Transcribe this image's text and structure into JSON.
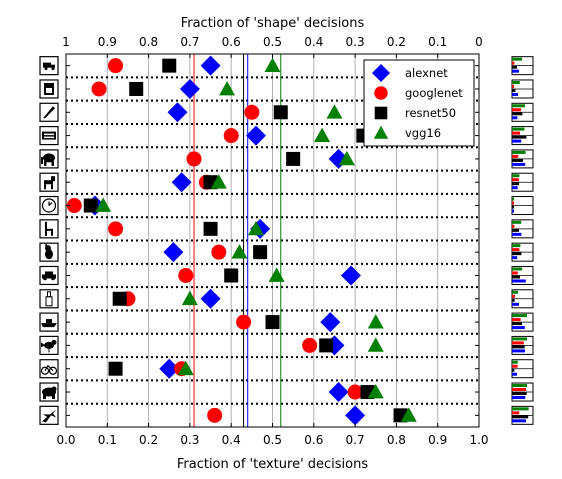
{
  "chart_data": {
    "type": "scatter",
    "xlabel": "Fraction of 'texture' decisions",
    "top_xlabel": "Fraction of 'shape' decisions",
    "xlim": [
      0,
      1
    ],
    "x_ticks": [
      "0.0",
      "0.1",
      "0.2",
      "0.3",
      "0.4",
      "0.5",
      "0.6",
      "0.7",
      "0.8",
      "0.9",
      "1.0"
    ],
    "top_ticks": [
      "1",
      "0.9",
      "0.8",
      "0.7",
      "0.6",
      "0.5",
      "0.4",
      "0.3",
      "0.2",
      "0.1",
      "0"
    ],
    "categories": [
      "truck",
      "oven",
      "knife",
      "keyboard",
      "elephant",
      "dog",
      "clock",
      "chair",
      "cat",
      "car",
      "bottle",
      "boat",
      "bird",
      "bicycle",
      "bear",
      "airplane"
    ],
    "series": [
      {
        "name": "alexnet",
        "marker": "diamond",
        "color": "#0000ff",
        "mean": 0.44,
        "values": [
          0.35,
          0.3,
          0.27,
          0.46,
          0.66,
          0.28,
          0.07,
          0.47,
          0.26,
          0.69,
          0.35,
          0.64,
          0.65,
          0.25,
          0.66,
          0.7
        ]
      },
      {
        "name": "googlenet",
        "marker": "circle",
        "color": "#ff0000",
        "mean": 0.31,
        "values": [
          0.12,
          0.08,
          0.45,
          0.4,
          0.31,
          0.34,
          0.02,
          0.12,
          0.37,
          0.29,
          0.15,
          0.43,
          0.59,
          0.28,
          0.7,
          0.36
        ]
      },
      {
        "name": "resnet50",
        "marker": "square",
        "color": "#000000",
        "mean": 0.43,
        "values": [
          0.25,
          0.17,
          0.52,
          0.72,
          0.55,
          0.35,
          0.06,
          0.35,
          0.47,
          0.4,
          0.13,
          0.5,
          0.63,
          0.12,
          0.73,
          0.81
        ]
      },
      {
        "name": "vgg16",
        "marker": "triangle",
        "color": "#008000",
        "mean": 0.52,
        "values": [
          0.5,
          0.39,
          0.65,
          0.62,
          0.68,
          0.37,
          0.09,
          0.46,
          0.42,
          0.51,
          0.3,
          0.75,
          0.75,
          0.29,
          0.75,
          0.83
        ]
      }
    ],
    "grid": "vertical lines at major ticks; dotted separators between categories",
    "legend_placement": "top-right"
  },
  "icons": [
    "truck-icon",
    "oven-icon",
    "knife-icon",
    "keyboard-icon",
    "elephant-icon",
    "dog-icon",
    "clock-icon",
    "chair-icon",
    "cat-icon",
    "car-icon",
    "bottle-icon",
    "boat-icon",
    "bird-icon",
    "bicycle-icon",
    "bear-icon",
    "airplane-icon"
  ],
  "thumbnail_colors": [
    "#008000",
    "#ff0000",
    "#000000",
    "#0000ff"
  ]
}
